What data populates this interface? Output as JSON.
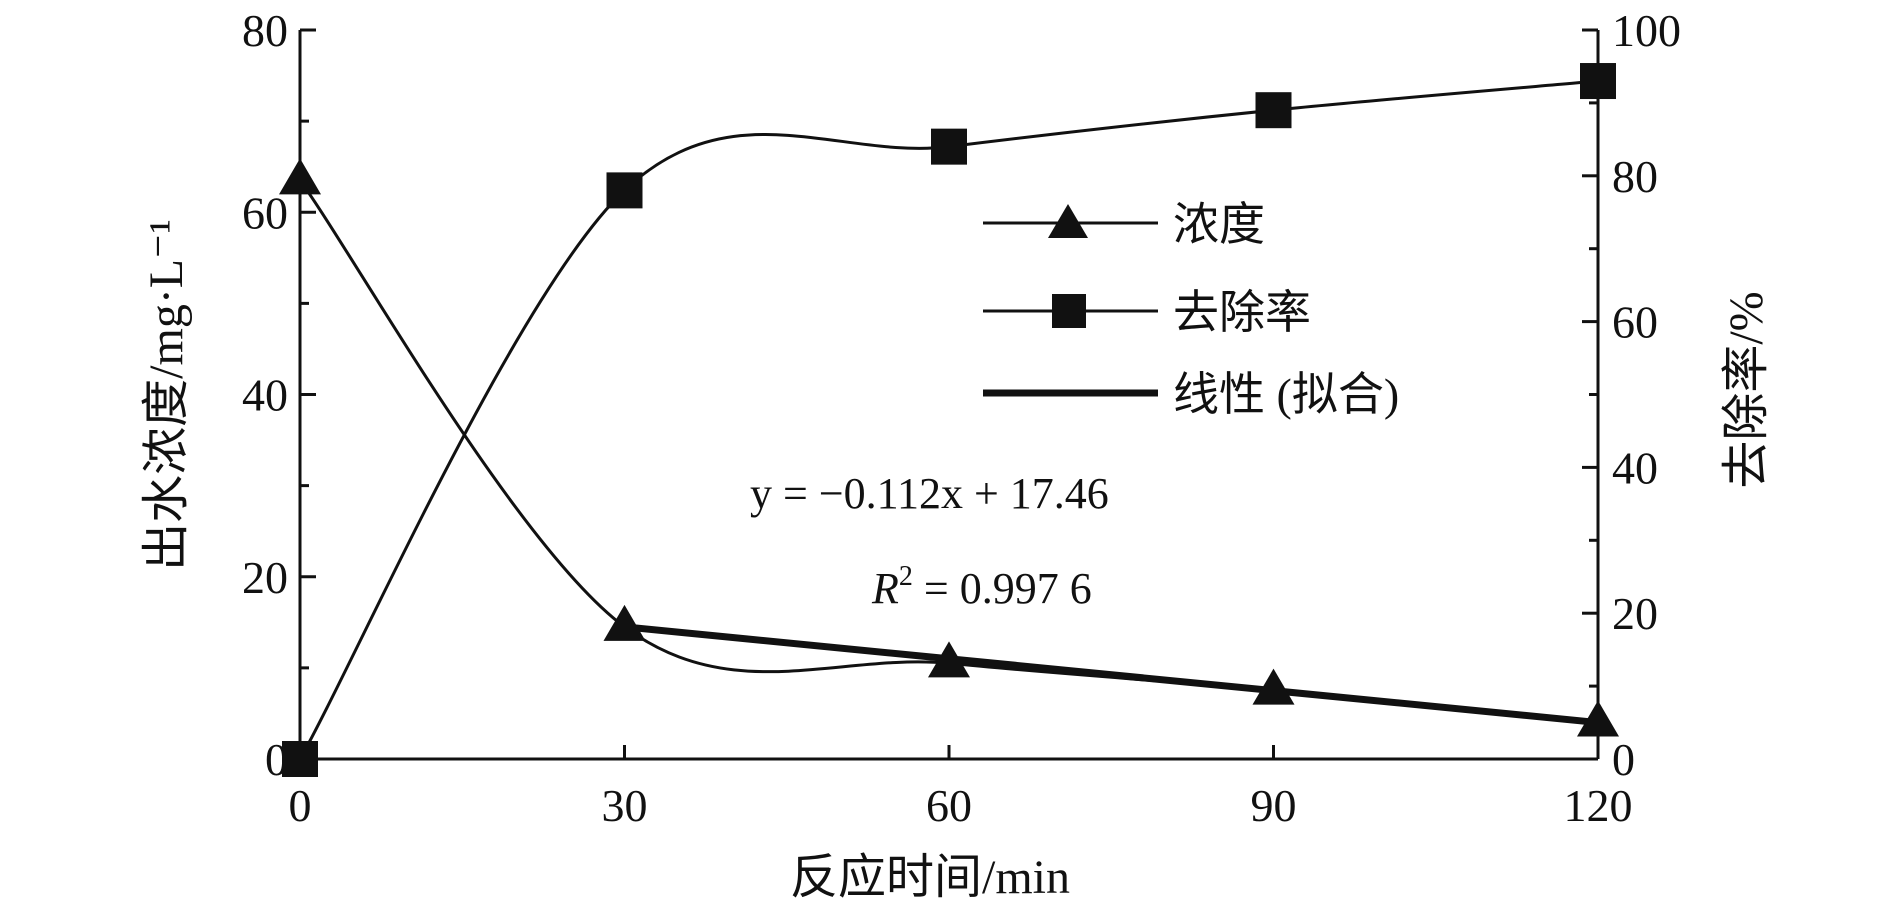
{
  "chart_data": {
    "type": "line",
    "xlabel": "反应时间/min",
    "ylabel_left": "出水浓度/mg·L⁻¹",
    "ylabel_right": "去除率/%",
    "xlim": [
      0,
      120
    ],
    "xticks": [
      "0",
      "30",
      "60",
      "90",
      "120"
    ],
    "ylim_left": [
      0,
      80
    ],
    "yticks_left": [
      "0",
      "20",
      "40",
      "60",
      "80"
    ],
    "ylim_right": [
      0,
      100
    ],
    "yticks_right": [
      "0",
      "20",
      "40",
      "60",
      "80",
      "100"
    ],
    "legend_position": "center",
    "series": [
      {
        "name": "浓度",
        "axis": "left",
        "marker": "triangle",
        "x": [
          0,
          30,
          60,
          90,
          120
        ],
        "values": [
          63.5,
          14.5,
          10.5,
          7.5,
          4.0
        ]
      },
      {
        "name": "去除率",
        "axis": "right",
        "marker": "square",
        "x": [
          0,
          30,
          60,
          90,
          120
        ],
        "values": [
          0,
          78,
          84,
          89,
          93
        ]
      },
      {
        "name": "线性 (拟合)",
        "axis": "left",
        "marker": "none",
        "x": [
          30,
          120
        ],
        "values": [
          14.5,
          4.0
        ]
      }
    ],
    "annotations": {
      "equation": "y = −0.112x + 17.46",
      "r2_label": "R",
      "r2_sup": "2",
      "r2_value": " = 0.997 6"
    }
  }
}
